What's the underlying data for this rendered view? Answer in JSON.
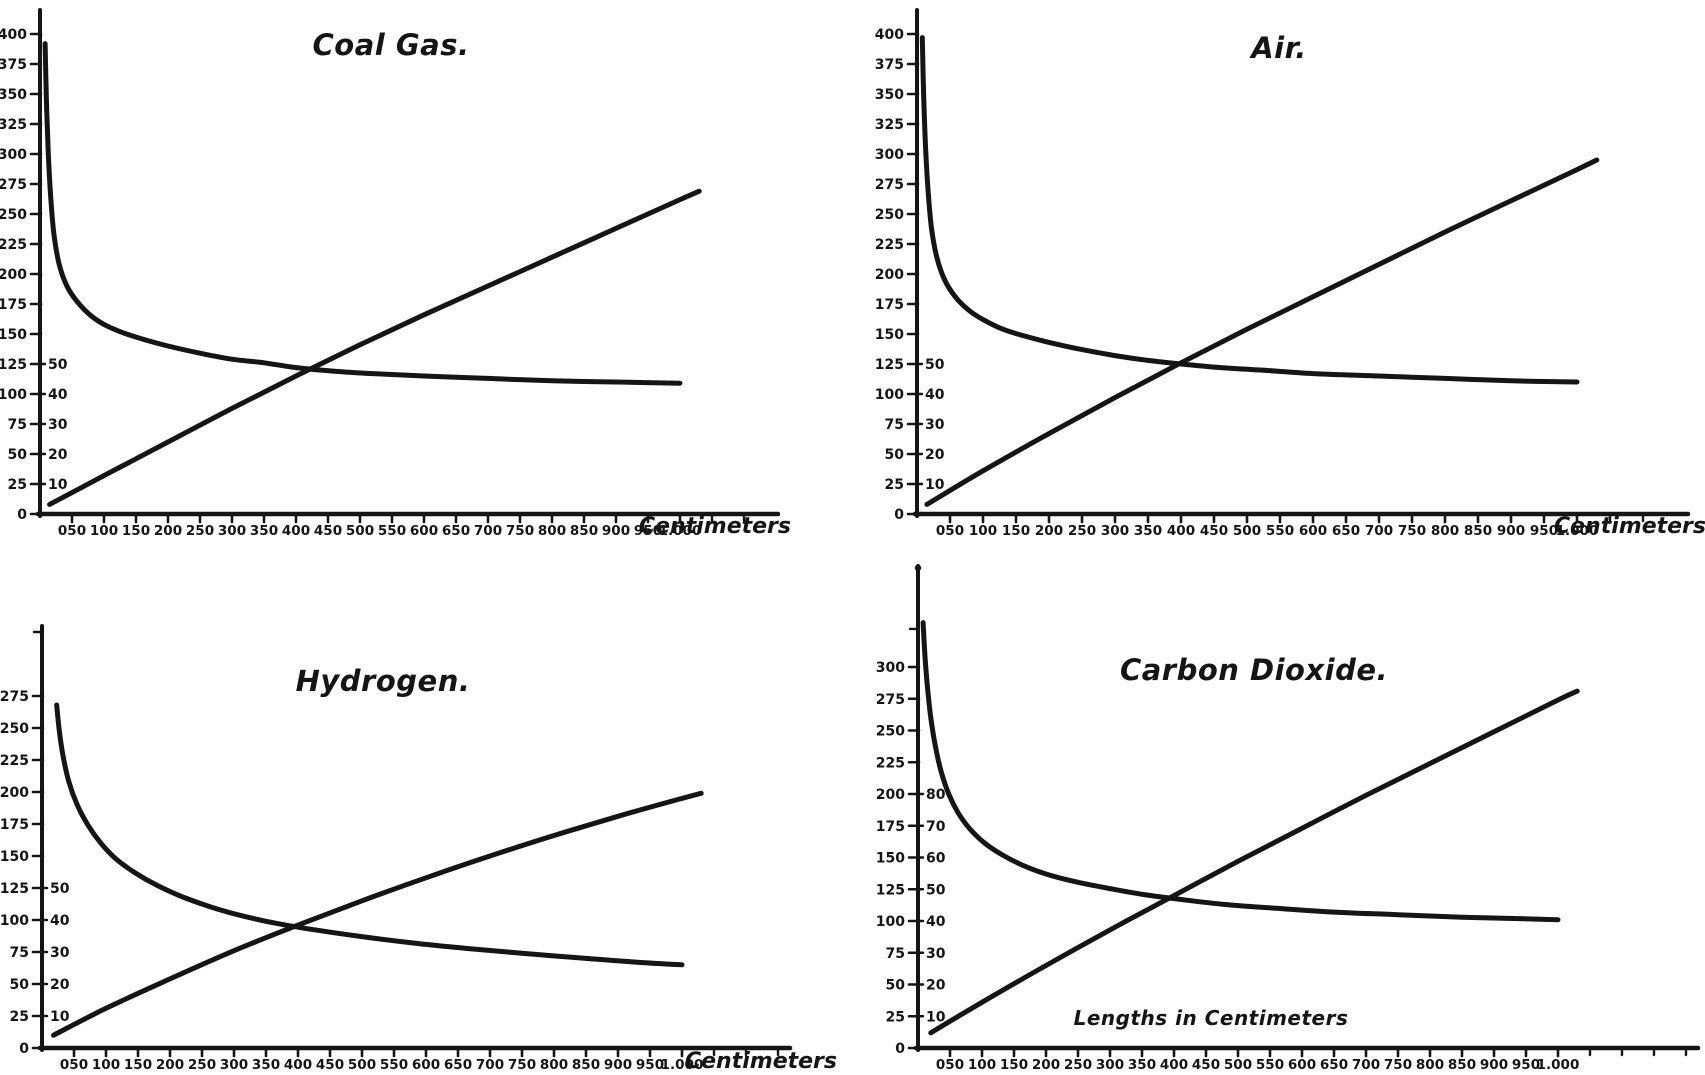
{
  "figure": {
    "background": "#ffffff",
    "ink": "#151515",
    "description_labels": [
      "Coal Gas.",
      "Air.",
      "Hydrogen.",
      "Carbon Dioxide."
    ]
  },
  "chart_data": [
    {
      "id": "coal-gas",
      "type": "line",
      "title": "Coal Gas.",
      "xlabel": "Centimeters",
      "ylabel": "",
      "grid": false,
      "xlim": [
        0,
        1050
      ],
      "ylim": [
        0,
        420
      ],
      "x_tick_labels": [
        "050",
        "100",
        "150",
        "200",
        "250",
        "300",
        "350",
        "400",
        "450",
        "500",
        "550",
        "600",
        "650",
        "700",
        "750",
        "800",
        "850",
        "900",
        "950",
        "1.000"
      ],
      "x_tick_values": [
        50,
        100,
        150,
        200,
        250,
        300,
        350,
        400,
        450,
        500,
        550,
        600,
        650,
        700,
        750,
        800,
        850,
        900,
        950,
        1000
      ],
      "x_ticks_unlabeled": [
        1050,
        1100
      ],
      "y_ticks_outer": [
        400,
        375,
        350,
        325,
        300,
        275,
        250,
        225,
        200,
        175,
        150,
        125,
        100,
        75,
        50,
        25,
        0
      ],
      "y_ticks_unlabeled": [],
      "y_ticks_inner": [
        [
          "50",
          125
        ],
        [
          "40",
          100
        ],
        [
          "30",
          75
        ],
        [
          "20",
          50
        ],
        [
          "10",
          25
        ]
      ],
      "series": [
        {
          "name": "descending-curve",
          "points": [
            [
              8,
              392
            ],
            [
              10,
              345
            ],
            [
              13,
              300
            ],
            [
              17,
              262
            ],
            [
              22,
              232
            ],
            [
              30,
              208
            ],
            [
              42,
              190
            ],
            [
              58,
              177
            ],
            [
              78,
              166
            ],
            [
              100,
              158
            ],
            [
              130,
              151
            ],
            [
              165,
              145
            ],
            [
              200,
              140
            ],
            [
              250,
              134
            ],
            [
              300,
              129
            ],
            [
              350,
              126
            ],
            [
              400,
              122
            ],
            [
              460,
              119
            ],
            [
              520,
              117
            ],
            [
              600,
              115
            ],
            [
              700,
              113
            ],
            [
              800,
              111
            ],
            [
              900,
              110
            ],
            [
              1000,
              109
            ]
          ]
        },
        {
          "name": "ascending-curve",
          "points": [
            [
              15,
              8
            ],
            [
              100,
              32
            ],
            [
              200,
              60
            ],
            [
              300,
              88
            ],
            [
              400,
              115
            ],
            [
              500,
              141
            ],
            [
              600,
              166
            ],
            [
              700,
              190
            ],
            [
              800,
              214
            ],
            [
              900,
              238
            ],
            [
              1000,
              262
            ],
            [
              1030,
              269
            ]
          ]
        }
      ]
    },
    {
      "id": "air",
      "type": "line",
      "title": "Air.",
      "xlabel": "Centimeters",
      "ylabel": "",
      "grid": false,
      "xlim": [
        0,
        1050
      ],
      "ylim": [
        0,
        420
      ],
      "x_tick_labels": [
        "050",
        "100",
        "150",
        "200",
        "250",
        "300",
        "350",
        "400",
        "450",
        "500",
        "550",
        "600",
        "650",
        "700",
        "750",
        "800",
        "850",
        "900",
        "950",
        "1.000"
      ],
      "x_tick_values": [
        50,
        100,
        150,
        200,
        250,
        300,
        350,
        400,
        450,
        500,
        550,
        600,
        650,
        700,
        750,
        800,
        850,
        900,
        950,
        1000
      ],
      "x_ticks_unlabeled": [
        1050,
        1100
      ],
      "y_ticks_outer": [
        400,
        375,
        350,
        325,
        300,
        275,
        250,
        225,
        200,
        175,
        150,
        125,
        100,
        75,
        50,
        25,
        0
      ],
      "y_ticks_unlabeled": [],
      "y_ticks_inner": [
        [
          "50",
          125
        ],
        [
          "40",
          100
        ],
        [
          "30",
          75
        ],
        [
          "20",
          50
        ],
        [
          "10",
          25
        ]
      ],
      "series": [
        {
          "name": "descending-curve",
          "points": [
            [
              8,
              397
            ],
            [
              10,
              350
            ],
            [
              13,
              305
            ],
            [
              17,
              268
            ],
            [
              22,
              238
            ],
            [
              30,
              214
            ],
            [
              42,
              195
            ],
            [
              58,
              181
            ],
            [
              78,
              170
            ],
            [
              100,
              162
            ],
            [
              130,
              154
            ],
            [
              165,
              148
            ],
            [
              200,
              143
            ],
            [
              250,
              137
            ],
            [
              300,
              132
            ],
            [
              350,
              128
            ],
            [
              400,
              125
            ],
            [
              460,
              122
            ],
            [
              520,
              120
            ],
            [
              600,
              117
            ],
            [
              700,
              115
            ],
            [
              800,
              113
            ],
            [
              900,
              111
            ],
            [
              1000,
              110
            ]
          ]
        },
        {
          "name": "ascending-curve",
          "points": [
            [
              15,
              8
            ],
            [
              100,
              36
            ],
            [
              200,
              67
            ],
            [
              300,
              97
            ],
            [
              400,
              126
            ],
            [
              500,
              154
            ],
            [
              600,
              181
            ],
            [
              700,
              208
            ],
            [
              800,
              235
            ],
            [
              900,
              261
            ],
            [
              1000,
              287
            ],
            [
              1030,
              295
            ]
          ]
        }
      ]
    },
    {
      "id": "hydrogen",
      "type": "line",
      "title": "Hydrogen.",
      "xlabel": "Centimeters",
      "ylabel": "",
      "grid": false,
      "xlim": [
        0,
        1050
      ],
      "ylim": [
        0,
        330
      ],
      "x_tick_labels": [
        "050",
        "100",
        "150",
        "200",
        "250",
        "300",
        "350",
        "400",
        "450",
        "500",
        "550",
        "600",
        "650",
        "700",
        "750",
        "800",
        "850",
        "900",
        "950",
        "1.000"
      ],
      "x_tick_values": [
        50,
        100,
        150,
        200,
        250,
        300,
        350,
        400,
        450,
        500,
        550,
        600,
        650,
        700,
        750,
        800,
        850,
        900,
        950,
        1000
      ],
      "x_ticks_unlabeled": [
        1050,
        1100,
        1150
      ],
      "y_ticks_outer": [
        275,
        250,
        225,
        200,
        175,
        150,
        125,
        100,
        75,
        50,
        25,
        0
      ],
      "y_ticks_unlabeled": [
        325
      ],
      "y_ticks_inner": [
        [
          "50",
          125
        ],
        [
          "40",
          100
        ],
        [
          "30",
          75
        ],
        [
          "20",
          50
        ],
        [
          "10",
          25
        ]
      ],
      "series": [
        {
          "name": "descending-curve",
          "points": [
            [
              23,
              268
            ],
            [
              27,
              248
            ],
            [
              33,
              228
            ],
            [
              42,
              208
            ],
            [
              55,
              190
            ],
            [
              72,
              174
            ],
            [
              92,
              160
            ],
            [
              115,
              148
            ],
            [
              145,
              137
            ],
            [
              180,
              127
            ],
            [
              220,
              118
            ],
            [
              265,
              110
            ],
            [
              315,
              103
            ],
            [
              370,
              97
            ],
            [
              430,
              92
            ],
            [
              500,
              87
            ],
            [
              580,
              82
            ],
            [
              660,
              78
            ],
            [
              750,
              74
            ],
            [
              850,
              70
            ],
            [
              930,
              67
            ],
            [
              1000,
              65
            ]
          ]
        },
        {
          "name": "ascending-curve",
          "points": [
            [
              18,
              10
            ],
            [
              100,
              31
            ],
            [
              200,
              54
            ],
            [
              300,
              76
            ],
            [
              400,
              96
            ],
            [
              500,
              115
            ],
            [
              600,
              133
            ],
            [
              700,
              150
            ],
            [
              800,
              166
            ],
            [
              900,
              181
            ],
            [
              1000,
              195
            ],
            [
              1030,
              199
            ]
          ]
        }
      ]
    },
    {
      "id": "carbon-dioxide",
      "type": "line",
      "title": "Carbon Dioxide.",
      "xlabel": "",
      "ylabel": "",
      "inner_caption": "Lengths in  Centimeters",
      "grid": false,
      "xlim": [
        0,
        1050
      ],
      "ylim": [
        0,
        380
      ],
      "x_tick_labels": [
        "050",
        "100",
        "150",
        "200",
        "250",
        "300",
        "350",
        "400",
        "450",
        "500",
        "550",
        "600",
        "650",
        "700",
        "750",
        "800",
        "850",
        "900",
        "950",
        "1.000"
      ],
      "x_tick_values": [
        50,
        100,
        150,
        200,
        250,
        300,
        350,
        400,
        450,
        500,
        550,
        600,
        650,
        700,
        750,
        800,
        850,
        900,
        950,
        1000
      ],
      "x_ticks_unlabeled": [
        1050,
        1100,
        1150,
        1200
      ],
      "y_ticks_outer": [
        300,
        275,
        250,
        225,
        200,
        175,
        150,
        125,
        100,
        75,
        50,
        25,
        0
      ],
      "y_ticks_unlabeled": [
        330
      ],
      "y_ticks_inner": [
        [
          "80",
          200
        ],
        [
          "70",
          175
        ],
        [
          "60",
          150
        ],
        [
          "50",
          125
        ],
        [
          "40",
          100
        ],
        [
          "30",
          75
        ],
        [
          "20",
          50
        ],
        [
          "10",
          25
        ]
      ],
      "series": [
        {
          "name": "descending-curve",
          "points": [
            [
              8,
              335
            ],
            [
              11,
              308
            ],
            [
              15,
              283
            ],
            [
              20,
              260
            ],
            [
              27,
              238
            ],
            [
              36,
              218
            ],
            [
              48,
              200
            ],
            [
              63,
              185
            ],
            [
              82,
              172
            ],
            [
              105,
              161
            ],
            [
              132,
              152
            ],
            [
              163,
              144
            ],
            [
              200,
              137
            ],
            [
              245,
              131
            ],
            [
              295,
              126
            ],
            [
              350,
              121
            ],
            [
              410,
              117
            ],
            [
              480,
              113
            ],
            [
              560,
              110
            ],
            [
              650,
              107
            ],
            [
              750,
              105
            ],
            [
              850,
              103
            ],
            [
              930,
              102
            ],
            [
              1000,
              101
            ]
          ]
        },
        {
          "name": "ascending-curve",
          "points": [
            [
              20,
              12
            ],
            [
              100,
              36
            ],
            [
              200,
              65
            ],
            [
              300,
              93
            ],
            [
              400,
              120
            ],
            [
              500,
              147
            ],
            [
              600,
              173
            ],
            [
              700,
              199
            ],
            [
              800,
              224
            ],
            [
              900,
              249
            ],
            [
              1000,
              274
            ],
            [
              1030,
              281
            ]
          ]
        }
      ]
    }
  ]
}
